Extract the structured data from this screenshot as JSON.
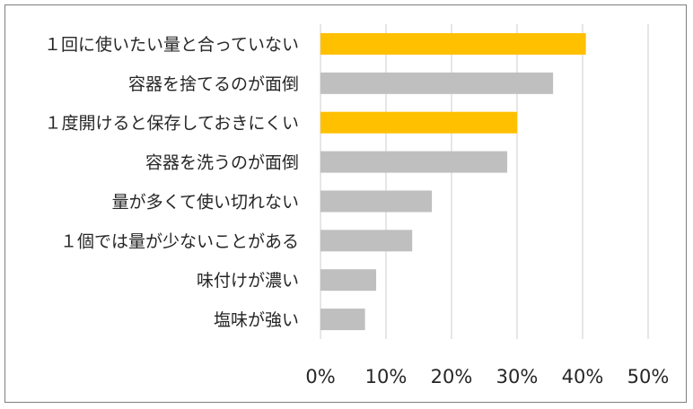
{
  "chart_data": {
    "type": "bar",
    "orientation": "horizontal",
    "categories": [
      "１回に使いたい量と合っていない",
      "容器を捨てるのが面倒",
      "１度開けると保存しておきにくい",
      "容器を洗うのが面倒",
      "量が多くて使い切れない",
      "１個では量が少ないことがある",
      "味付けが濃い",
      "塩味が強い"
    ],
    "values": [
      0.405,
      0.355,
      0.3,
      0.285,
      0.17,
      0.14,
      0.085,
      0.068
    ],
    "highlighted": [
      true,
      false,
      true,
      false,
      false,
      false,
      false,
      false
    ],
    "xlim": [
      0,
      0.5
    ],
    "xticks": [
      0,
      0.1,
      0.2,
      0.3,
      0.4,
      0.5
    ],
    "xtick_labels": [
      "0%",
      "10%",
      "20%",
      "30%",
      "40%",
      "50%"
    ],
    "grid": true,
    "title": "",
    "xlabel": "",
    "ylabel": "",
    "colors": {
      "highlight": "#ffc000",
      "default": "#bfbfbf",
      "gridline": "#d9d9d9",
      "text": "#262626",
      "border": "#7f7f7f"
    }
  }
}
